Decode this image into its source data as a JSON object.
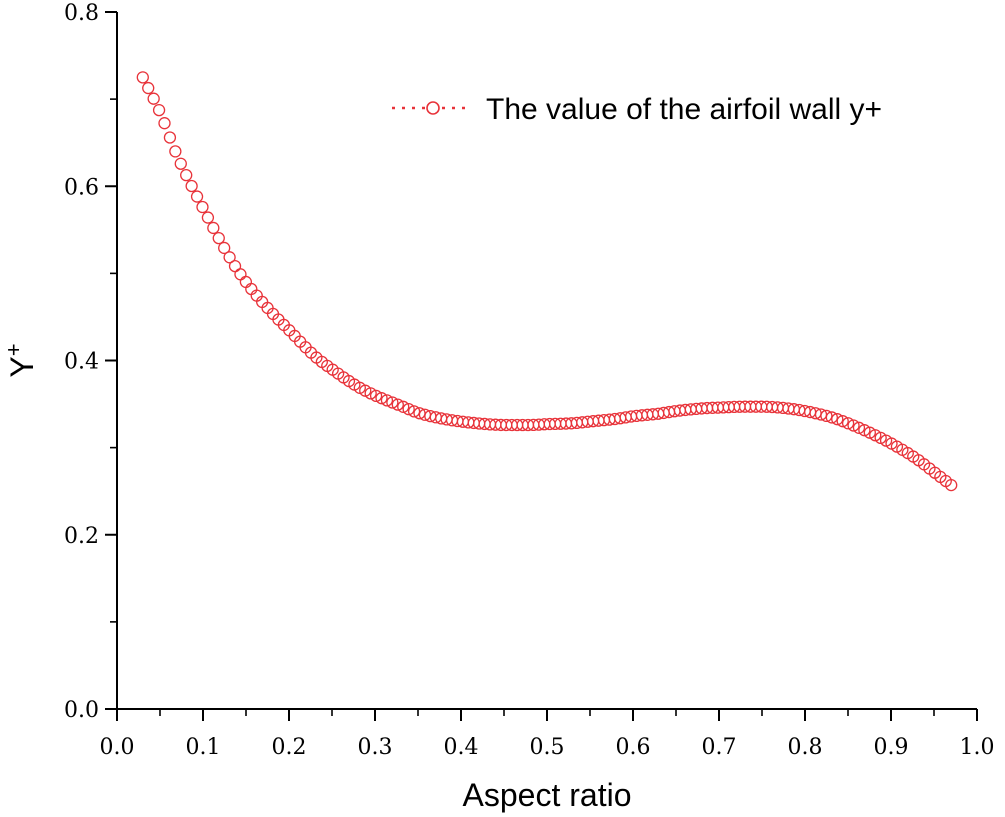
{
  "chart_data": {
    "type": "scatter",
    "title": "",
    "xlabel": "Aspect ratio",
    "ylabel_base": "Y",
    "ylabel_sup": "+",
    "xlim": [
      0.0,
      1.0
    ],
    "ylim": [
      0.0,
      0.8
    ],
    "x_ticks": [
      "0.0",
      "0.1",
      "0.2",
      "0.3",
      "0.4",
      "0.5",
      "0.6",
      "0.7",
      "0.8",
      "0.9",
      "1.0"
    ],
    "y_ticks": [
      "0.0",
      "0.2",
      "0.4",
      "0.6",
      "0.8"
    ],
    "grid": false,
    "legend_position": "top-right",
    "color": "#e8333a",
    "marker": "open-circle",
    "series": [
      {
        "name": "The value of the airfoil wall y+",
        "x": [
          0.03,
          0.05,
          0.07,
          0.1,
          0.13,
          0.15,
          0.18,
          0.2,
          0.23,
          0.25,
          0.28,
          0.3,
          0.33,
          0.35,
          0.38,
          0.4,
          0.43,
          0.45,
          0.48,
          0.5,
          0.53,
          0.55,
          0.58,
          0.6,
          0.63,
          0.65,
          0.68,
          0.7,
          0.73,
          0.75,
          0.78,
          0.8,
          0.83,
          0.85,
          0.88,
          0.9,
          0.93,
          0.95,
          0.97
        ],
        "y": [
          0.725,
          0.685,
          0.635,
          0.575,
          0.52,
          0.49,
          0.455,
          0.435,
          0.405,
          0.39,
          0.37,
          0.36,
          0.348,
          0.34,
          0.333,
          0.33,
          0.327,
          0.326,
          0.326,
          0.327,
          0.328,
          0.33,
          0.333,
          0.336,
          0.339,
          0.342,
          0.345,
          0.346,
          0.347,
          0.347,
          0.345,
          0.342,
          0.335,
          0.328,
          0.315,
          0.305,
          0.287,
          0.272,
          0.257
        ]
      }
    ]
  }
}
